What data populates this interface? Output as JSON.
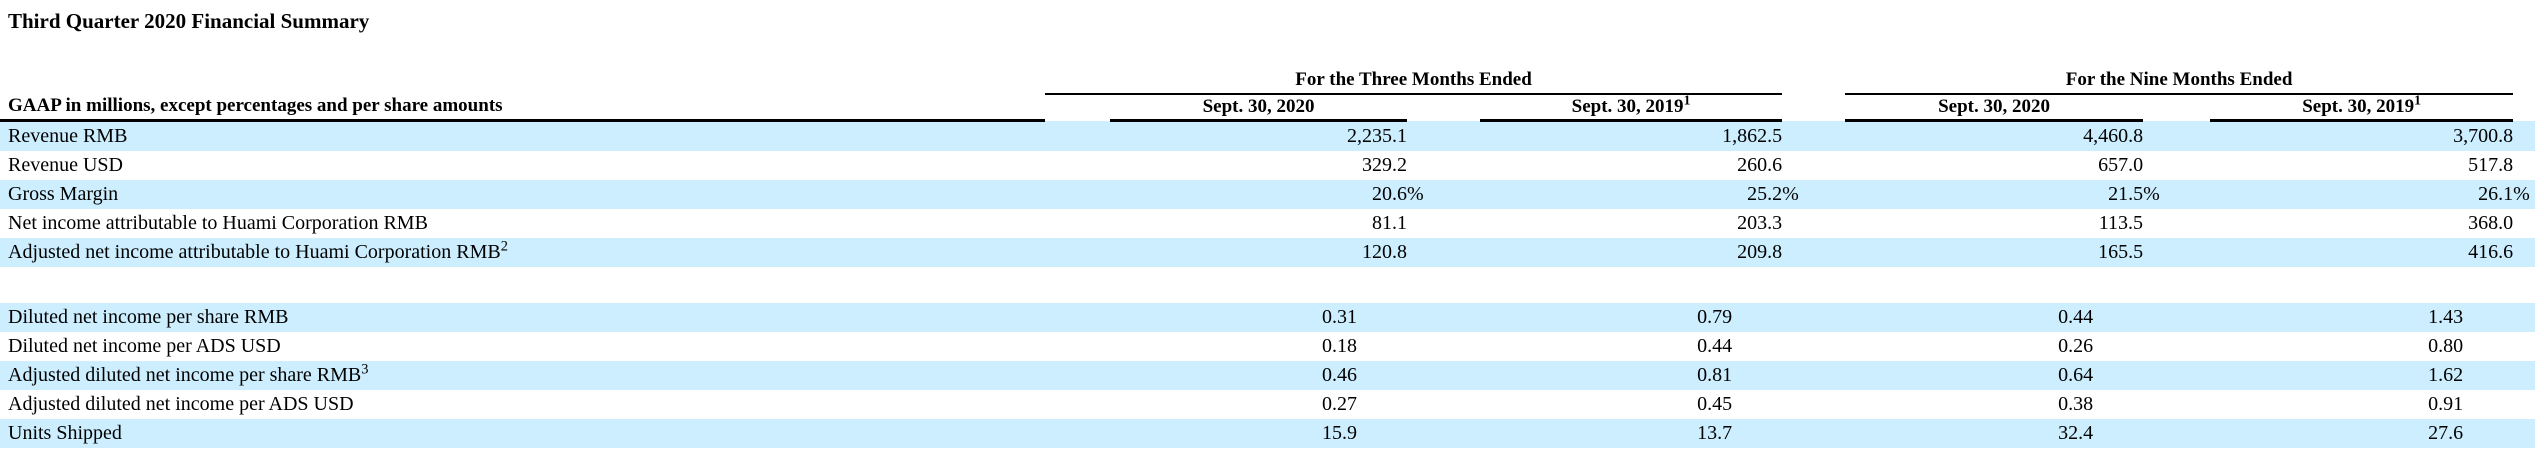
{
  "title": "Third Quarter 2020 Financial Summary",
  "colors": {
    "row_highlight": "#CCEEFF",
    "text": "#000000",
    "rule": "#000000"
  },
  "table": {
    "row_label_header": "GAAP in millions, except percentages and per share amounts",
    "groups": [
      {
        "label": "For the Three Months Ended"
      },
      {
        "label": "For the Nine Months Ended"
      }
    ],
    "columns": [
      {
        "label": "Sept. 30, 2020",
        "superscript": ""
      },
      {
        "label": "Sept. 30, 2019",
        "superscript": "1"
      },
      {
        "label": "Sept. 30, 2020",
        "superscript": ""
      },
      {
        "label": "Sept. 30, 2019",
        "superscript": "1"
      }
    ],
    "rows": [
      {
        "label": "Revenue RMB",
        "label_sup": "",
        "values": [
          "2,235.1",
          "1,862.5",
          "4,460.8",
          "3,700.8"
        ],
        "unit": "",
        "highlight": true,
        "shift": false
      },
      {
        "label": "Revenue USD",
        "label_sup": "",
        "values": [
          "329.2",
          "260.6",
          "657.0",
          "517.8"
        ],
        "unit": "",
        "highlight": false,
        "shift": false
      },
      {
        "label": "Gross Margin",
        "label_sup": "",
        "values": [
          "20.6",
          "25.2",
          "21.5",
          "26.1"
        ],
        "unit": "%",
        "highlight": true,
        "shift": false
      },
      {
        "label": "Net income attributable to Huami Corporation RMB",
        "label_sup": "",
        "values": [
          "81.1",
          "203.3",
          "113.5",
          "368.0"
        ],
        "unit": "",
        "highlight": false,
        "shift": false
      },
      {
        "label": "Adjusted net income attributable to Huami Corporation RMB",
        "label_sup": "2",
        "values": [
          "120.8",
          "209.8",
          "165.5",
          "416.6"
        ],
        "unit": "",
        "highlight": true,
        "shift": false
      },
      {
        "type": "spacer"
      },
      {
        "label": "Diluted net income per share RMB",
        "label_sup": "",
        "values": [
          "0.31",
          "0.79",
          "0.44",
          "1.43"
        ],
        "unit": "",
        "highlight": true,
        "shift": true
      },
      {
        "label": "Diluted net income per ADS USD",
        "label_sup": "",
        "values": [
          "0.18",
          "0.44",
          "0.26",
          "0.80"
        ],
        "unit": "",
        "highlight": false,
        "shift": true
      },
      {
        "label": "Adjusted diluted net income per share RMB",
        "label_sup": "3",
        "values": [
          "0.46",
          "0.81",
          "0.64",
          "1.62"
        ],
        "unit": "",
        "highlight": true,
        "shift": true
      },
      {
        "label": "Adjusted diluted net income per ADS USD",
        "label_sup": "",
        "values": [
          "0.27",
          "0.45",
          "0.38",
          "0.91"
        ],
        "unit": "",
        "highlight": false,
        "shift": true
      },
      {
        "label": "Units Shipped",
        "label_sup": "",
        "values": [
          "15.9",
          "13.7",
          "32.4",
          "27.6"
        ],
        "unit": "",
        "highlight": true,
        "shift": true
      }
    ]
  }
}
